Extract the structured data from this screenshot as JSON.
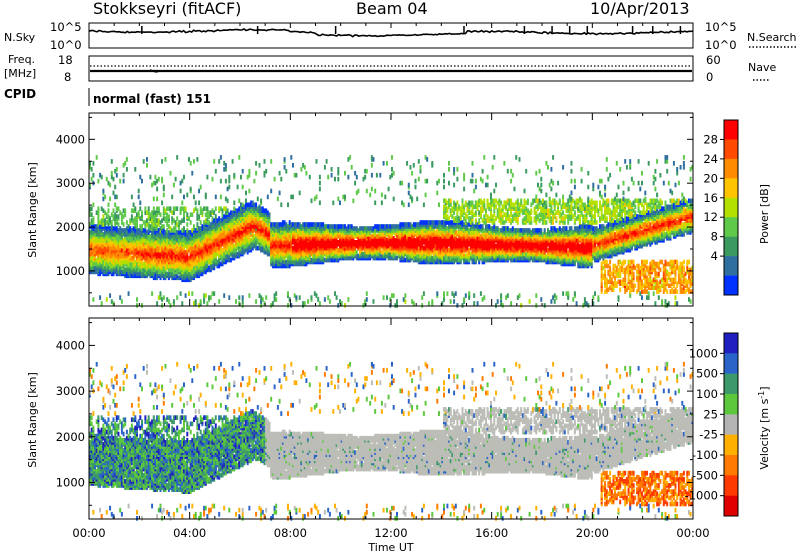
{
  "header": {
    "station": "Stokkseyri (fitACF)",
    "beam": "Beam 04",
    "date": "10/Apr/2013"
  },
  "noise_panel": {
    "left_label": "N.Sky",
    "right_label": "N.Search",
    "tick_top": "10^5",
    "tick_bottom": "10^0"
  },
  "freq_panel": {
    "left_label_1": "Freq.",
    "left_label_2": "[MHz]",
    "right_label": "Nave",
    "left_ticks": [
      "18",
      "8"
    ],
    "right_ticks": [
      "60",
      "0"
    ]
  },
  "cpid": {
    "label": "CPID",
    "value": "normal (fast) 151"
  },
  "x_axis": {
    "label": "Time UT",
    "ticks": [
      "00:00",
      "04:00",
      "08:00",
      "12:00",
      "16:00",
      "20:00",
      "00:00"
    ]
  },
  "chart_data": [
    {
      "type": "heatmap",
      "name": "power",
      "ylabel": "Slant Range [km]",
      "yticks": [
        1000,
        2000,
        3000,
        4000
      ],
      "ylim": [
        200,
        4600
      ],
      "xlim_hours": [
        0,
        24
      ],
      "colorbar": {
        "label": "Power [dB]",
        "ticks": [
          "28",
          "24",
          "20",
          "16",
          "12",
          "8",
          "4"
        ],
        "colors": [
          "#ff0000",
          "#ff4a00",
          "#ff8c00",
          "#ffc400",
          "#b4e000",
          "#5fc94a",
          "#3a9a60",
          "#2f6fa0",
          "#0032ff"
        ]
      }
    },
    {
      "type": "heatmap",
      "name": "velocity",
      "ylabel": "Slant Range [km]",
      "yticks": [
        1000,
        2000,
        3000,
        4000
      ],
      "ylim": [
        200,
        4600
      ],
      "xlim_hours": [
        0,
        24
      ],
      "colorbar": {
        "label": "Velocity [m s^-1]",
        "ticks": [
          "1000",
          "500",
          "100",
          "25",
          "-25",
          "-100",
          "-500",
          "-1000"
        ],
        "colors": [
          "#2020c0",
          "#2a64c8",
          "#3c9a6a",
          "#5cc83c",
          "#b4b4b4",
          "#ffb000",
          "#ff7a00",
          "#ff3a00",
          "#e00000"
        ]
      }
    }
  ]
}
